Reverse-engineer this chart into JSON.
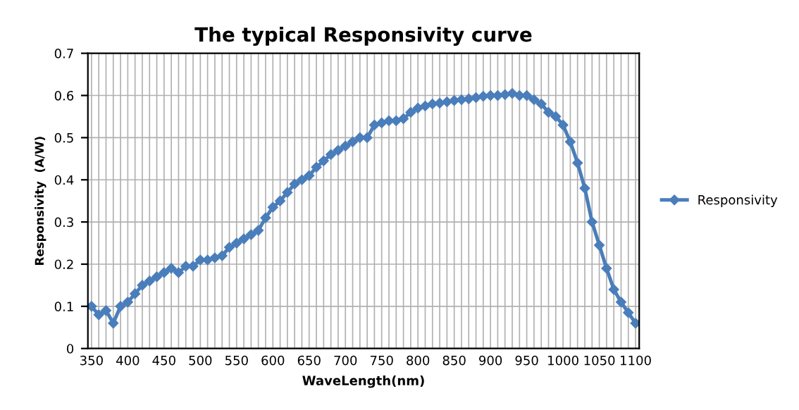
{
  "chart_data": {
    "type": "line",
    "title": "The typical Responsivity curve",
    "xlabel": "WaveLength(nm)",
    "ylabel": "Responsivity  (A/W)",
    "categories": [
      "350",
      null,
      null,
      null,
      null,
      "400",
      null,
      null,
      null,
      null,
      "450",
      null,
      null,
      null,
      null,
      "500",
      null,
      null,
      null,
      null,
      "550",
      null,
      null,
      null,
      null,
      "600",
      null,
      null,
      null,
      null,
      "650",
      null,
      null,
      null,
      null,
      "700",
      null,
      null,
      null,
      null,
      "750",
      null,
      null,
      null,
      null,
      "800",
      null,
      null,
      null,
      null,
      "850",
      null,
      null,
      null,
      null,
      "900",
      null,
      null,
      null,
      null,
      "950",
      null,
      null,
      null,
      null,
      "1000",
      null,
      null,
      null,
      null,
      "1050",
      null,
      null,
      null,
      null,
      "1100"
    ],
    "series": [
      {
        "name": "Responsivity",
        "color": "#4a7ebb",
        "values": [
          0.1,
          0.08,
          0.09,
          0.06,
          0.1,
          0.11,
          0.13,
          0.15,
          0.16,
          0.17,
          0.18,
          0.19,
          0.18,
          0.195,
          0.195,
          0.21,
          0.21,
          0.215,
          0.22,
          0.24,
          0.25,
          0.26,
          0.27,
          0.28,
          0.31,
          0.335,
          0.35,
          0.37,
          0.39,
          0.4,
          0.41,
          0.43,
          0.445,
          0.46,
          0.47,
          0.48,
          0.49,
          0.5,
          0.5,
          0.53,
          0.535,
          0.54,
          0.54,
          0.545,
          0.56,
          0.57,
          0.575,
          0.58,
          0.582,
          0.585,
          0.588,
          0.59,
          0.592,
          0.595,
          0.598,
          0.6,
          0.6,
          0.602,
          0.605,
          0.6,
          0.6,
          0.59,
          0.58,
          0.56,
          0.55,
          0.53,
          0.49,
          0.44,
          0.38,
          0.3,
          0.245,
          0.19,
          0.14,
          0.11,
          0.085,
          0.06
        ]
      }
    ],
    "ylim": [
      0,
      0.7
    ],
    "yticks": [
      0,
      0.1,
      0.2,
      0.3,
      0.4,
      0.5,
      0.6,
      0.7
    ],
    "grid": true,
    "legend": "right",
    "marker": "diamond",
    "line_style": "solid"
  }
}
